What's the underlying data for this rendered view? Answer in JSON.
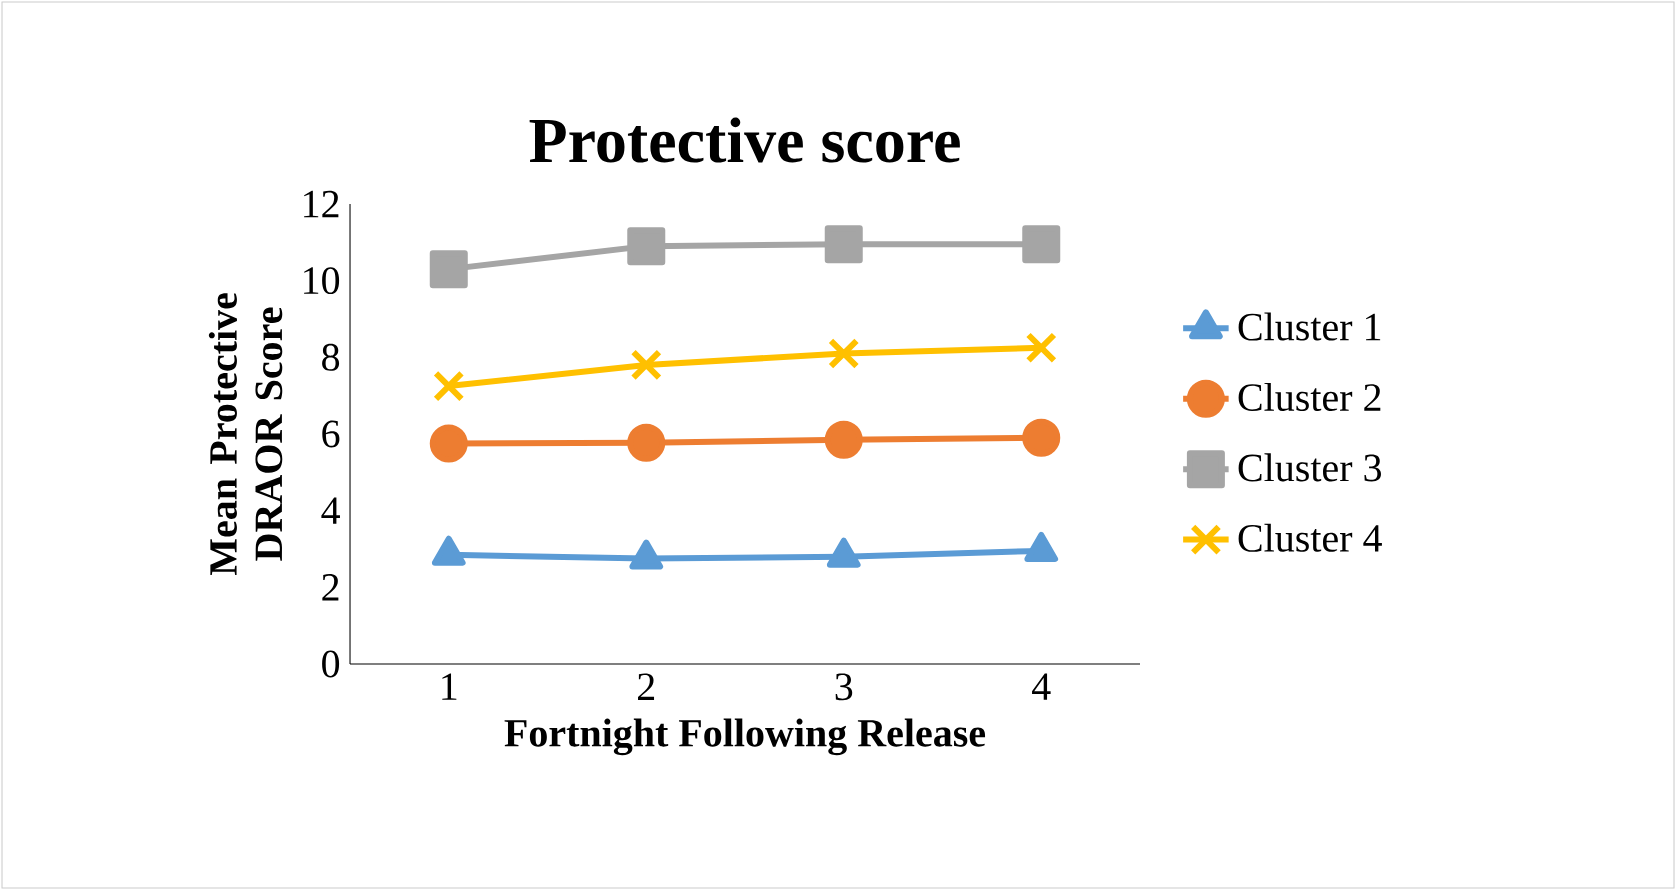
{
  "chart_data": {
    "type": "line",
    "title": "Protective score",
    "xlabel": "Fortnight Following Release",
    "ylabel": "Mean Protective DRAOR Score",
    "categories": [
      "1",
      "2",
      "3",
      "4"
    ],
    "series": [
      {
        "name": "Cluster 1",
        "color": "#5b9bd5",
        "marker": "triangle",
        "values": [
          2.85,
          2.75,
          2.8,
          2.95
        ]
      },
      {
        "name": "Cluster 2",
        "color": "#ed7d31",
        "marker": "circle",
        "values": [
          5.75,
          5.77,
          5.85,
          5.9
        ]
      },
      {
        "name": "Cluster 3",
        "color": "#a5a5a5",
        "marker": "square",
        "values": [
          10.3,
          10.9,
          10.95,
          10.95
        ]
      },
      {
        "name": "Cluster 4",
        "color": "#ffc000",
        "marker": "cross",
        "values": [
          7.25,
          7.8,
          8.1,
          8.25
        ]
      }
    ],
    "ylim": [
      0,
      12
    ],
    "yticks": [
      0,
      2,
      4,
      6,
      8,
      10,
      12
    ],
    "grid": false,
    "legend": "right",
    "line_style": "solid"
  }
}
